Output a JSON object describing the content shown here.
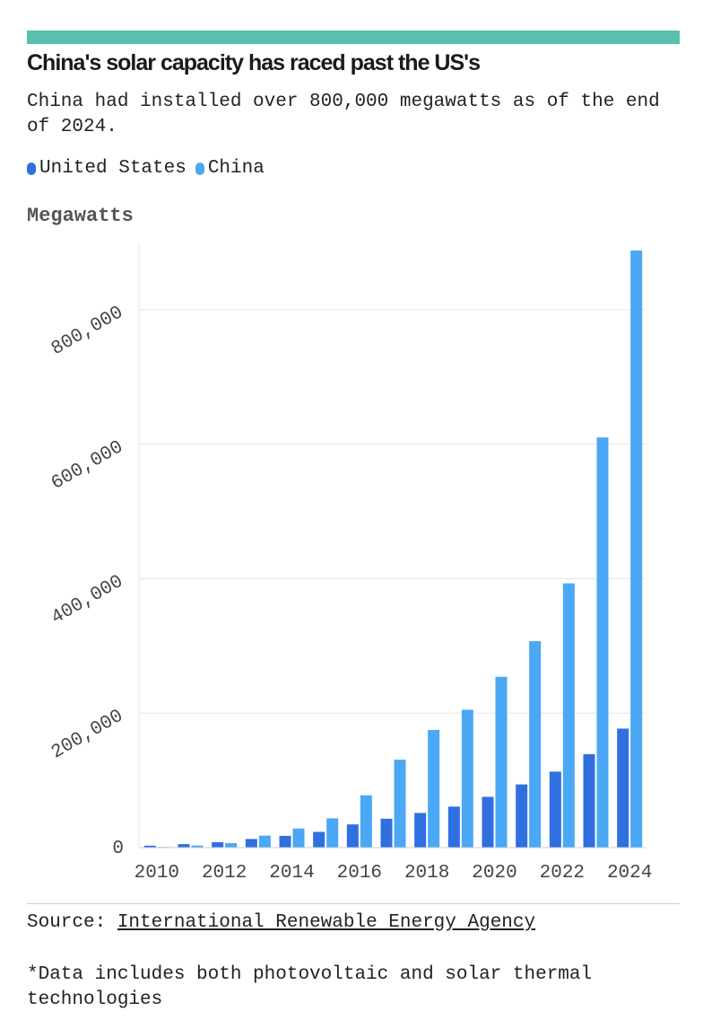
{
  "header": {
    "title": "China's solar capacity has raced past the US's",
    "subtitle": "China had installed over 800,000 megawatts as of the end of 2024."
  },
  "legend": [
    {
      "name": "United States",
      "color": "#2f6fe0"
    },
    {
      "name": "China",
      "color": "#4aa8f5"
    }
  ],
  "unit_label": "Megawatts",
  "chart_data": {
    "type": "bar",
    "ylabel": "Megawatts",
    "ylim": [
      0,
      900000
    ],
    "yticks": [
      0,
      200000,
      400000,
      600000,
      800000
    ],
    "ytick_labels": [
      "0",
      "200,000",
      "400,000",
      "600,000",
      "800,000"
    ],
    "categories": [
      "2010",
      "2011",
      "2012",
      "2013",
      "2014",
      "2015",
      "2016",
      "2017",
      "2018",
      "2019",
      "2020",
      "2021",
      "2022",
      "2023",
      "2024"
    ],
    "xtick_labels": [
      "2010",
      "2012",
      "2014",
      "2016",
      "2018",
      "2020",
      "2022",
      "2024"
    ],
    "grid": true,
    "legend_position": "top-left",
    "series": [
      {
        "name": "United States",
        "color": "#2f6fe0",
        "values": [
          2900,
          5200,
          8100,
          12800,
          17500,
          23400,
          34500,
          43000,
          51500,
          61000,
          75500,
          94000,
          113000,
          139000,
          177000
        ]
      },
      {
        "name": "China",
        "color": "#4aa8f5",
        "values": [
          1000,
          3100,
          6700,
          17800,
          28400,
          43500,
          77800,
          130800,
          175000,
          205000,
          254000,
          307000,
          393000,
          610000,
          888000
        ]
      }
    ]
  },
  "footer": {
    "source_prefix": "Source: ",
    "source_link": "International Renewable Energy Agency",
    "note": "*Data includes both photovoltaic and solar thermal technologies"
  }
}
